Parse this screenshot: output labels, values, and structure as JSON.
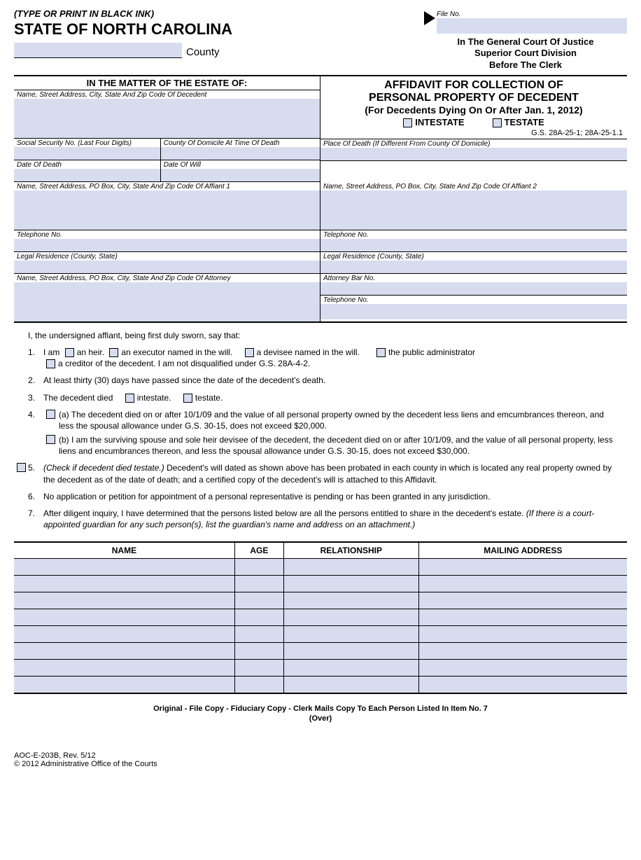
{
  "header": {
    "ink_note": "(TYPE OR PRINT IN BLACK INK)",
    "state": "STATE OF NORTH CAROLINA",
    "county_label": "County",
    "file_no_label": "File No.",
    "court1": "In The General Court Of Justice",
    "court2": "Superior Court Division",
    "court3": "Before The Clerk"
  },
  "matter": {
    "heading": "IN THE MATTER OF THE ESTATE OF:",
    "decedent_label": "Name, Street Address, City, State And Zip Code Of Decedent",
    "ssn_label": "Social Security No. (Last Four Digits)",
    "domicile_label": "County Of Domicile At Time Of Death",
    "dod_label": "Date Of Death",
    "dow_label": "Date Of Will",
    "pod_label": "Place Of Death (If Different From County Of Domicile)",
    "aff1_label": "Name, Street Address, PO Box, City, State And Zip Code Of Affiant 1",
    "aff2_label": "Name, Street Address, PO Box, City, State And Zip Code Of Affiant 2",
    "tel_label": "Telephone No.",
    "legres_label": "Legal Residence (County, State)",
    "atty_label": "Name, Street Address, PO Box, City, State And Zip Code Of Attorney",
    "atty_bar_label": "Attorney Bar No."
  },
  "title": {
    "line1": "AFFIDAVIT FOR COLLECTION OF",
    "line2": "PERSONAL PROPERTY OF DECEDENT",
    "line3": "(For Decedents Dying On Or After Jan. 1, 2012)",
    "intestate": "INTESTATE",
    "testate": "TESTATE",
    "gs": "G.S. 28A-25-1; 28A-25-1.1"
  },
  "body": {
    "intro": "I, the undersigned affiant, being first duly sworn, say that:",
    "i1_pre": "I am",
    "i1_a": "an heir.",
    "i1_b": "an executor named in the will.",
    "i1_c": "a devisee named in the will.",
    "i1_d": "the public administrator",
    "i1_e": "a creditor of the decedent. I am not disqualified under G.S. 28A-4-2.",
    "i2": "At least thirty (30) days have passed since the date of the decedent's death.",
    "i3_pre": "The decedent died",
    "i3_a": "intestate.",
    "i3_b": "testate.",
    "i4a": "(a)  The decedent died on or after 10/1/09 and the value of all personal property owned by the decedent less liens and emcumbrances thereon, and less the spousal allowance under G.S. 30-15, does not exceed $20,000.",
    "i4b": "(b)  I am the surviving spouse and sole heir devisee of the decedent, the decedent died on or after 10/1/09, and the value of all personal property, less liens and encumbrances thereon, and less the spousal allowance under G.S. 30-15, does not exceed $30,000.",
    "i5_note": "(Check if decedent died testate.)",
    "i5": " Decedent's will dated as shown above has been probated in each county in which is located any real property owned by the decedent as of the date of death; and a certified copy of the decedent's will is attached to this Affidavit.",
    "i6": "No application or petition for appointment of a personal representative is pending or has been granted in any jurisdiction.",
    "i7": "After diligent inquiry, I have determined that the persons listed below are all the persons entitled to share in the decedent's estate.  ",
    "i7_note": "(If there is a court-appointed guardian for any such person(s), list the guardian's name and address on an attachment.)"
  },
  "table": {
    "h1": "NAME",
    "h2": "AGE",
    "h3": "RELATIONSHIP",
    "h4": "MAILING ADDRESS",
    "rows": 8
  },
  "footer": {
    "copies": "Original - File    Copy - Fiduciary    Copy - Clerk Mails Copy To Each Person Listed In Item No. 7",
    "over": "(Over)",
    "form_id": "AOC-E-203B, Rev. 5/12",
    "copyright": "© 2012 Administrative Office of the Courts"
  },
  "colors": {
    "field_bg": "#d7ddef"
  }
}
